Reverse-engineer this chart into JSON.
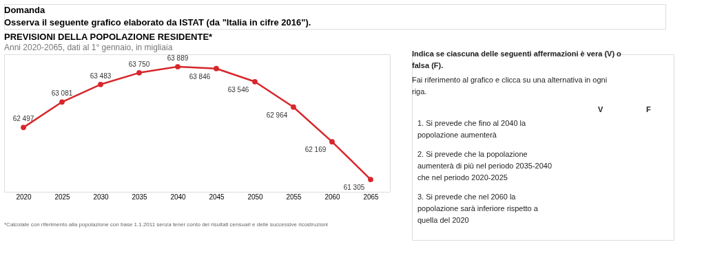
{
  "chart_data": {
    "type": "line",
    "title": "PREVISIONI DELLA POPOLAZIONE RESIDENTE*",
    "subtitle": "Anni 2020-2065, dati al 1° gennaio, in migliaia",
    "categories": [
      "2020",
      "2025",
      "2030",
      "2035",
      "2040",
      "2045",
      "2050",
      "2055",
      "2060",
      "2065"
    ],
    "series": [
      {
        "color": "#d7262b",
        "values": [
          62497,
          63081,
          63483,
          63750,
          63889,
          63846,
          63546,
          62964,
          62169,
          61305
        ]
      }
    ],
    "data_labels": true,
    "marker": "circle",
    "line_style": "solid",
    "grid": false,
    "annotations": [
      "Domanda",
      "Osserva il seguente grafico elaborato da ISTAT (da \"Italia in cifre 2016\").",
      "*Calcolate con riferimento alla popolazione con base 1.1.2011 senza tener conto dei risultati censuari e delle successive ricostruzioni",
      "Indica se ciascuna delle seguenti affermazioni è vera (V) o falsa (F).",
      "Fai riferimento al grafico e clicca su una alternativa in ogni riga.",
      "V",
      "F",
      "1. Si prevede che fino al 2040 la popolazione aumenterà",
      "2. Si prevede che la popolazione aumenterà di più nel periodo 2035-2040 che nel periodo 2020-2025",
      "3. Si prevede che nel 2060 la popolazione sarà inferiore rispetto a quella del 2020"
    ]
  }
}
